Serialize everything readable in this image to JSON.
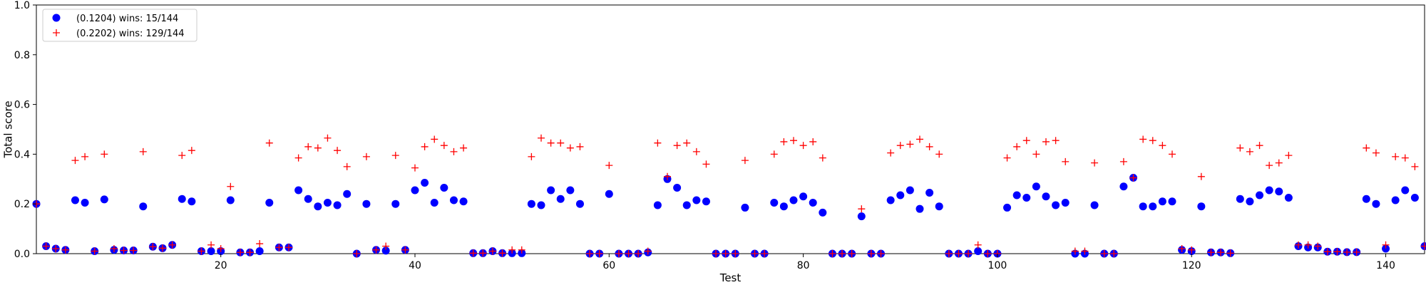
{
  "chart_data": {
    "type": "scatter",
    "title": "",
    "xlabel": "Test",
    "ylabel": "Total score",
    "xlim": [
      1,
      144
    ],
    "ylim": [
      0,
      1.0
    ],
    "xticks": [
      20,
      40,
      60,
      80,
      100,
      120,
      140
    ],
    "yticks": [
      0.0,
      0.2,
      0.4,
      0.6,
      0.8,
      1.0
    ],
    "ytick_labels": [
      "0.0",
      "0.2",
      "0.4",
      "0.6",
      "0.8",
      "1.0"
    ],
    "grid": false,
    "legend_position": "top-left",
    "series": [
      {
        "name": "(0.1204) wins: 15/144",
        "marker": "circle",
        "color": "#0000ff",
        "values": [
          0.2,
          0.03,
          0.02,
          0.015,
          0.215,
          0.205,
          0.01,
          0.218,
          0.015,
          0.013,
          0.013,
          0.19,
          0.028,
          0.022,
          0.035,
          0.22,
          0.21,
          0.01,
          0.01,
          0.01,
          0.215,
          0.005,
          0.005,
          0.01,
          0.205,
          0.025,
          0.025,
          0.255,
          0.22,
          0.19,
          0.205,
          0.195,
          0.24,
          0.0,
          0.2,
          0.015,
          0.012,
          0.2,
          0.015,
          0.255,
          0.285,
          0.205,
          0.265,
          0.215,
          0.21,
          0.002,
          0.002,
          0.01,
          0.002,
          0.002,
          0.002,
          0.2,
          0.195,
          0.255,
          0.22,
          0.255,
          0.2,
          0.0,
          0.0,
          0.24,
          0.0,
          0.0,
          0.0,
          0.005,
          0.195,
          0.3,
          0.265,
          0.195,
          0.215,
          0.21,
          0.0,
          0.0,
          0.0,
          0.185,
          0.0,
          0.0,
          0.205,
          0.19,
          0.215,
          0.23,
          0.205,
          0.165,
          0.0,
          0.0,
          0.0,
          0.15,
          0.0,
          0.0,
          0.215,
          0.235,
          0.255,
          0.18,
          0.245,
          0.19,
          0.0,
          0.0,
          0.0,
          0.01,
          0.0,
          0.0,
          0.185,
          0.235,
          0.225,
          0.27,
          0.23,
          0.195,
          0.205,
          0.0,
          0.0,
          0.195,
          0.0,
          0.0,
          0.27,
          0.305,
          0.19,
          0.19,
          0.21,
          0.21,
          0.015,
          0.01,
          0.19,
          0.005,
          0.005,
          0.002,
          0.22,
          0.21,
          0.235,
          0.255,
          0.25,
          0.225,
          0.03,
          0.025,
          0.025,
          0.008,
          0.008,
          0.006,
          0.006,
          0.22,
          0.2,
          0.02,
          0.215,
          0.255,
          0.225,
          0.03
        ]
      },
      {
        "name": "(0.2202) wins: 129/144",
        "marker": "plus",
        "color": "#ff0000",
        "values": [
          0.2,
          0.03,
          0.02,
          0.015,
          0.375,
          0.39,
          0.01,
          0.4,
          0.02,
          0.013,
          0.013,
          0.41,
          0.028,
          0.022,
          0.035,
          0.395,
          0.415,
          0.01,
          0.035,
          0.02,
          0.27,
          0.005,
          0.005,
          0.04,
          0.445,
          0.025,
          0.025,
          0.385,
          0.43,
          0.425,
          0.465,
          0.415,
          0.35,
          0.0,
          0.39,
          0.015,
          0.03,
          0.395,
          0.015,
          0.345,
          0.43,
          0.46,
          0.435,
          0.41,
          0.425,
          0.002,
          0.002,
          0.01,
          0.002,
          0.015,
          0.015,
          0.39,
          0.465,
          0.445,
          0.445,
          0.425,
          0.43,
          0.0,
          0.0,
          0.355,
          0.0,
          0.0,
          0.0,
          0.01,
          0.445,
          0.31,
          0.435,
          0.445,
          0.41,
          0.36,
          0.0,
          0.0,
          0.0,
          0.375,
          0.0,
          0.0,
          0.4,
          0.45,
          0.455,
          0.435,
          0.45,
          0.385,
          0.0,
          0.0,
          0.0,
          0.18,
          0.0,
          0.0,
          0.405,
          0.435,
          0.44,
          0.46,
          0.43,
          0.4,
          0.0,
          0.0,
          0.0,
          0.035,
          0.0,
          0.0,
          0.385,
          0.43,
          0.455,
          0.4,
          0.45,
          0.455,
          0.37,
          0.01,
          0.01,
          0.365,
          0.0,
          0.0,
          0.37,
          0.305,
          0.46,
          0.455,
          0.435,
          0.4,
          0.02,
          0.015,
          0.31,
          0.005,
          0.005,
          0.002,
          0.425,
          0.41,
          0.435,
          0.355,
          0.365,
          0.395,
          0.035,
          0.035,
          0.03,
          0.008,
          0.008,
          0.006,
          0.006,
          0.425,
          0.405,
          0.035,
          0.39,
          0.385,
          0.35,
          0.03
        ]
      }
    ]
  }
}
